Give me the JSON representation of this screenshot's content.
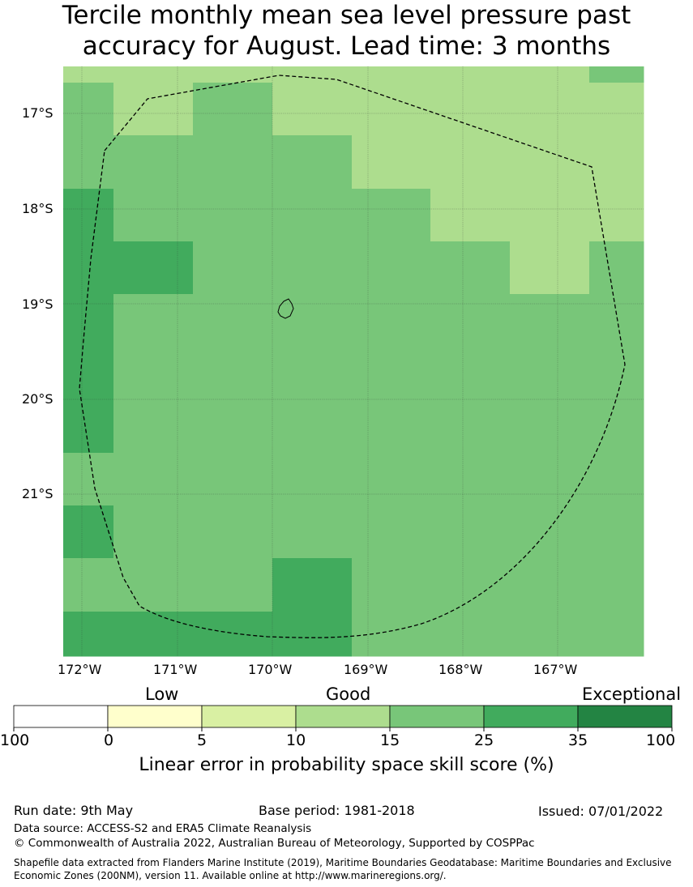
{
  "title": {
    "line1": "Tercile monthly mean sea level pressure past",
    "line2": "accuracy for August. Lead time: 3 months"
  },
  "map": {
    "lat_ticks": [
      "17°S",
      "18°S",
      "19°S",
      "20°S",
      "21°S"
    ],
    "lon_ticks": [
      "172°W",
      "171°W",
      "170°W",
      "169°W",
      "168°W",
      "167°W"
    ],
    "grid": [
      [
        "10",
        "10",
        "10",
        "10",
        "10",
        "10",
        "10",
        "15"
      ],
      [
        "15",
        "10",
        "15",
        "10",
        "10",
        "10",
        "10",
        "10"
      ],
      [
        "15",
        "15",
        "15",
        "15",
        "10",
        "10",
        "10",
        "10"
      ],
      [
        "25",
        "15",
        "15",
        "15",
        "15",
        "10",
        "10",
        "10"
      ],
      [
        "25",
        "25",
        "15",
        "15",
        "15",
        "15",
        "10",
        "15"
      ],
      [
        "25",
        "15",
        "15",
        "15",
        "15",
        "15",
        "15",
        "15"
      ],
      [
        "25",
        "15",
        "15",
        "15",
        "15",
        "15",
        "15",
        "15"
      ],
      [
        "25",
        "15",
        "15",
        "15",
        "15",
        "15",
        "15",
        "15"
      ],
      [
        "15",
        "15",
        "15",
        "15",
        "15",
        "15",
        "15",
        "15"
      ],
      [
        "25",
        "15",
        "15",
        "15",
        "15",
        "15",
        "15",
        "15"
      ],
      [
        "15",
        "15",
        "15",
        "25",
        "15",
        "15",
        "15",
        "15"
      ],
      [
        "25",
        "25",
        "25",
        "25",
        "15",
        "15",
        "15",
        "15"
      ]
    ]
  },
  "legend": {
    "categories": [
      "Low",
      "Good",
      "Exceptional"
    ],
    "ticks": [
      "100",
      "0",
      "5",
      "10",
      "15",
      "25",
      "35",
      "100"
    ],
    "colors": [
      "#ffffff",
      "#ffffcc",
      "#d9f0a3",
      "#addd8e",
      "#78c679",
      "#41ab5d",
      "#238443"
    ],
    "title": "Linear error in probability space skill score (%)"
  },
  "footer": {
    "run_date": "Run date: 9th May",
    "base_period": "Base period: 1981-2018",
    "issued": "Issued: 07/01/2022",
    "data_source": "Data source: ACCESS-S2 and ERA5 Climate Reanalysis",
    "copyright": "© Commonwealth of Australia 2022, Australian Bureau of Meteorology, Supported by COSPPac",
    "shapefile_line1": "Shapefile data extracted from Flanders Marine Institute (2019), Maritime Boundaries Geodatabase: Maritime Boundaries and Exclusive",
    "shapefile_line2": "Economic Zones (200NM), version 11. Available online at http://www.marineregions.org/."
  }
}
